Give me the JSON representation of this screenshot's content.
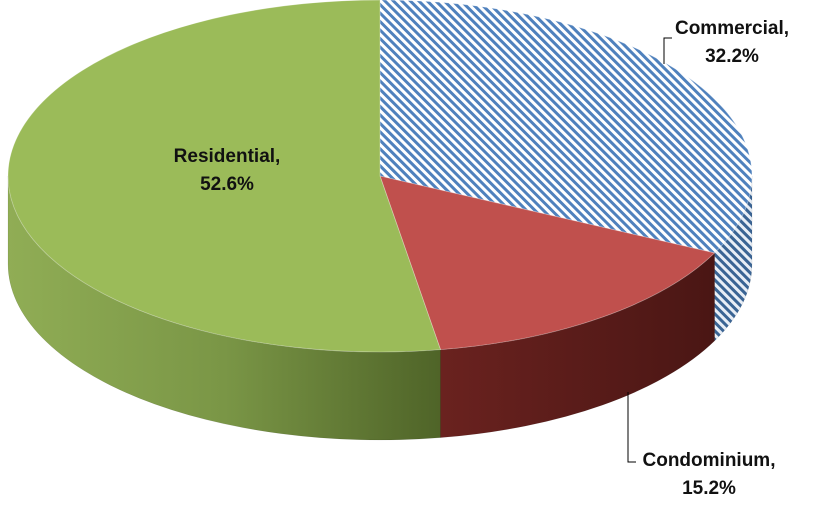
{
  "chart_data": {
    "type": "pie",
    "style": "3d",
    "title": "",
    "slices": [
      {
        "category": "Commercial",
        "value": 32.2,
        "label": "Commercial,",
        "value_label": "32.2%",
        "color": "#4f81bd",
        "fill": "diagonal-stripes"
      },
      {
        "category": "Condominium",
        "value": 15.2,
        "label": "Condominium,",
        "value_label": "15.2%",
        "color": "#c0504d",
        "fill": "solid"
      },
      {
        "category": "Residential",
        "value": 52.6,
        "label": "Residential,",
        "value_label": "52.6%",
        "color": "#9bbb59",
        "fill": "solid"
      }
    ],
    "legend": "none",
    "data_labels": "category-and-percent"
  }
}
